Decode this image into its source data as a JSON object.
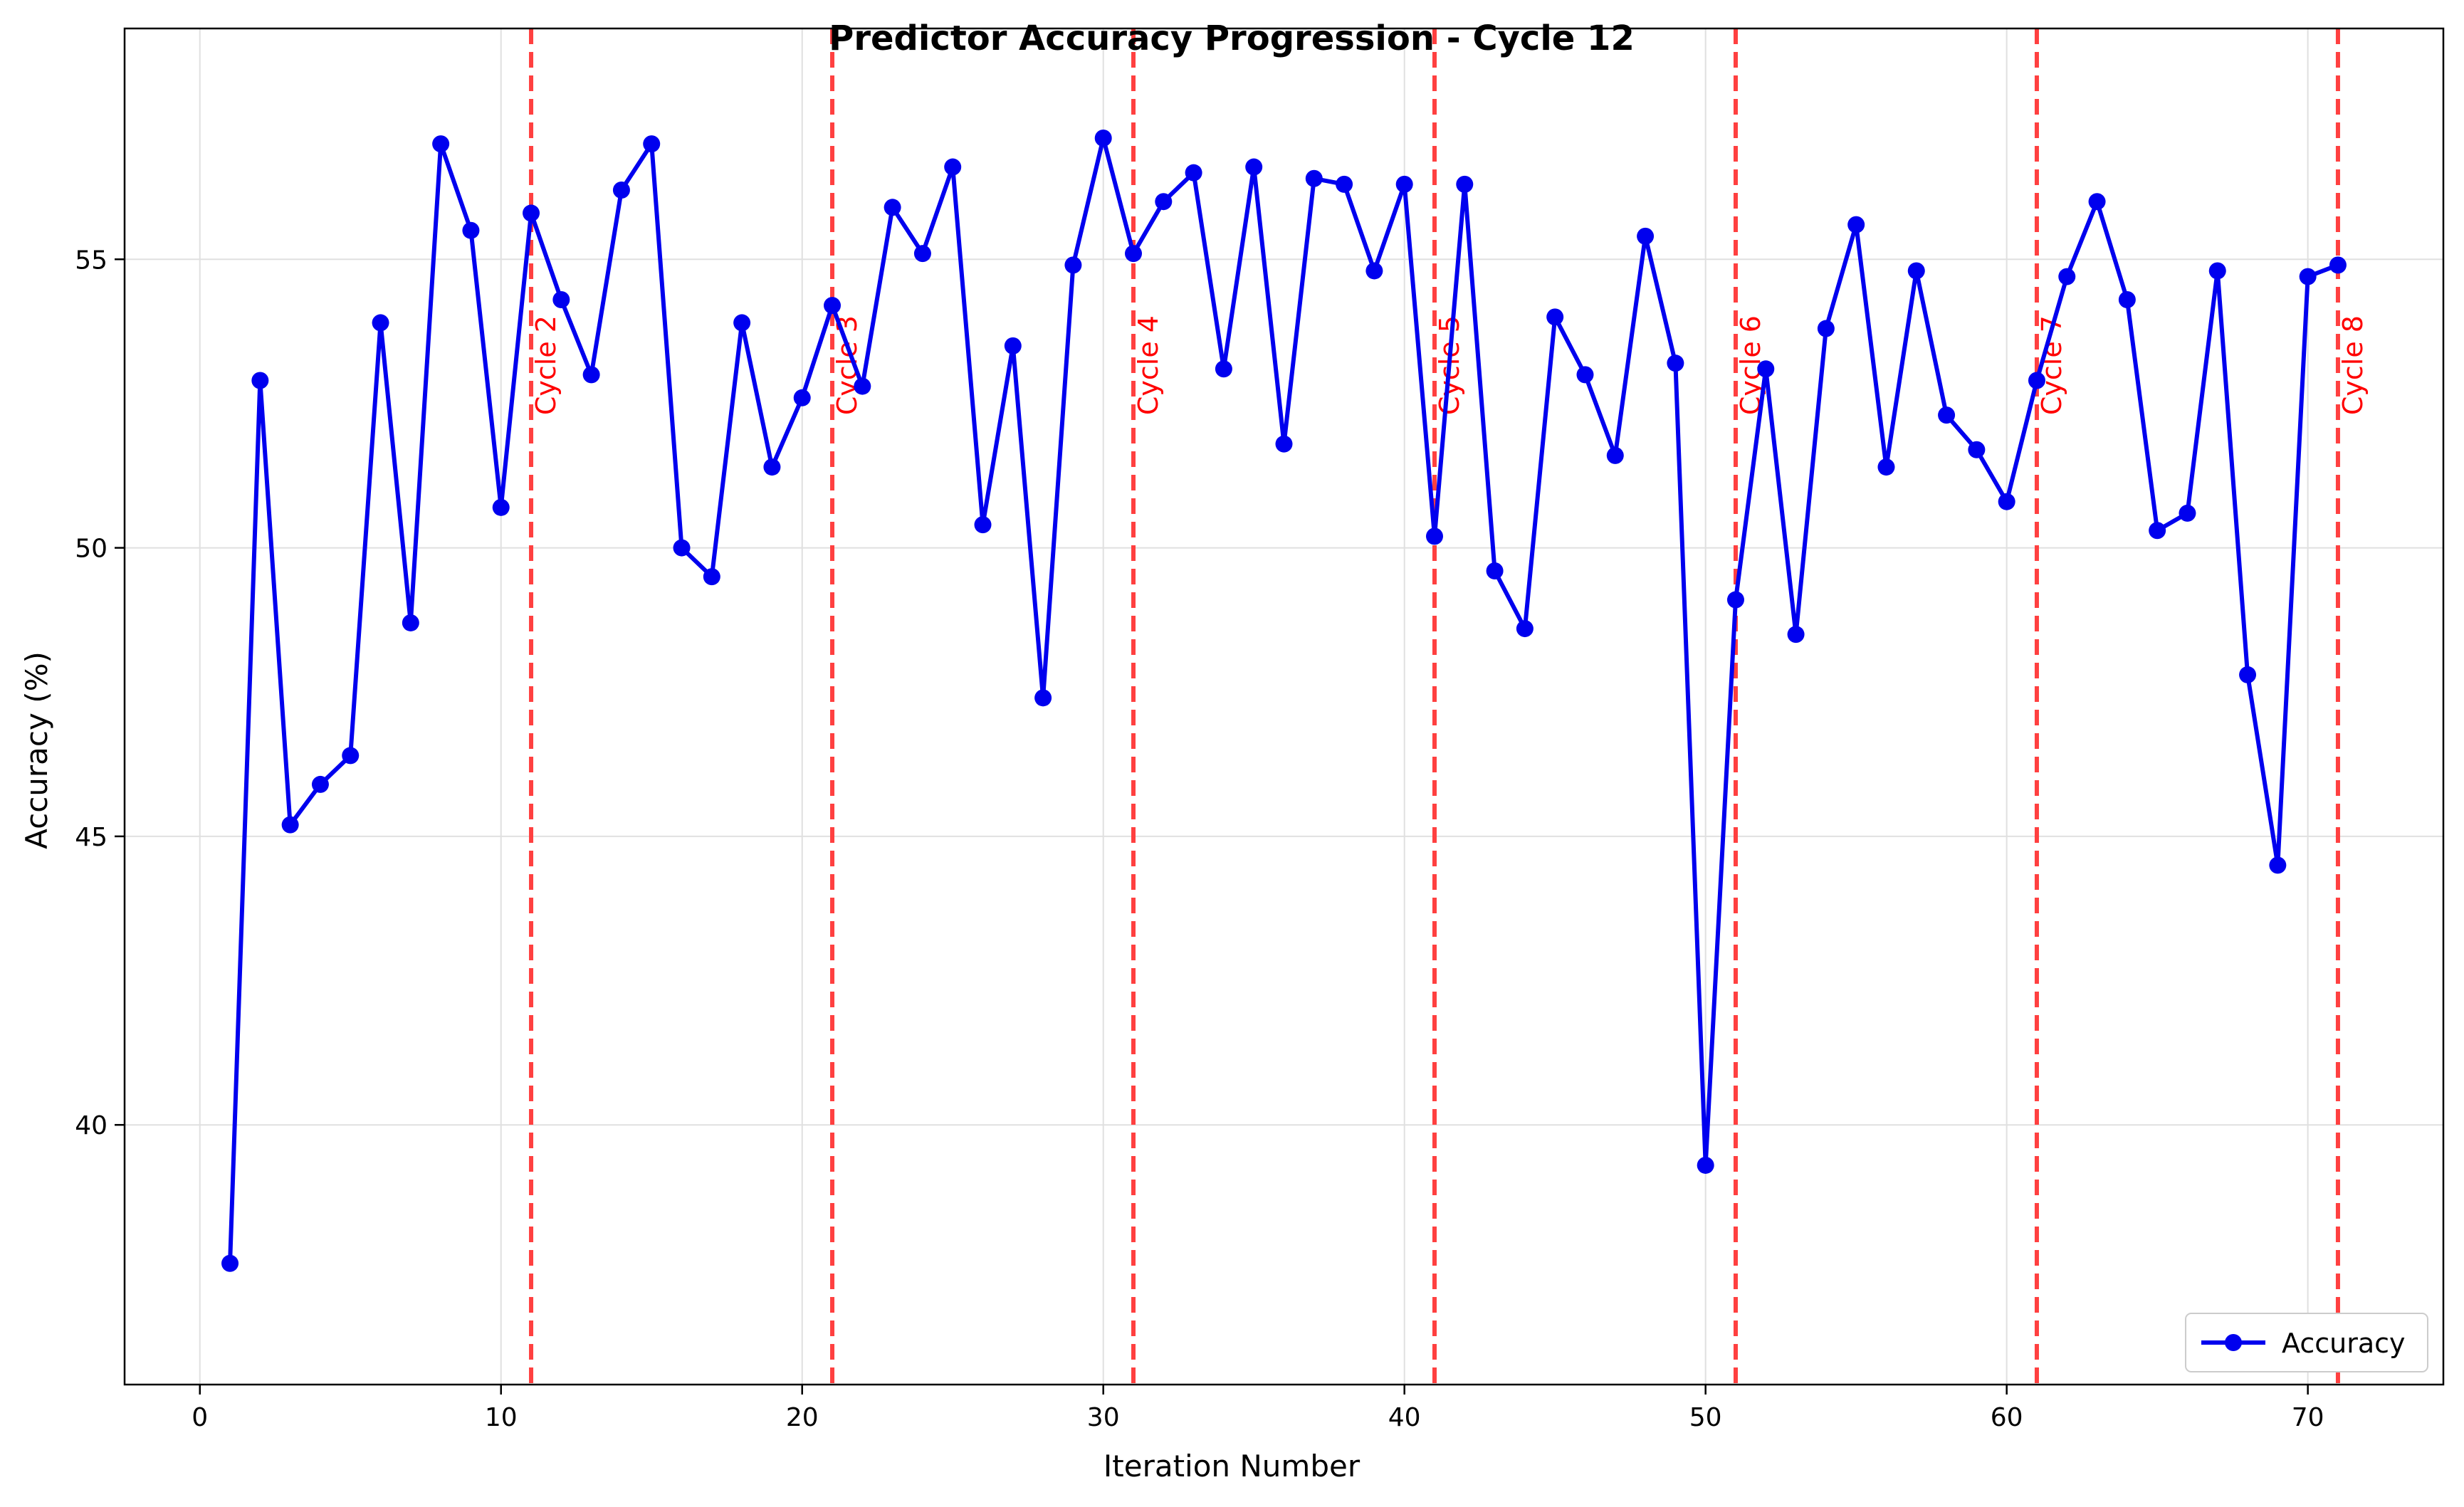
{
  "chart_data": {
    "type": "line",
    "title": "Predictor Accuracy Progression - Cycle 12",
    "xlabel": "Iteration Number",
    "ylabel": "Accuracy (%)",
    "xlim": [
      -2.5,
      74.5
    ],
    "ylim": [
      35.5,
      59.0
    ],
    "xticks": [
      0,
      10,
      20,
      30,
      40,
      50,
      60,
      70
    ],
    "yticks": [
      40,
      45,
      50,
      55
    ],
    "grid": true,
    "legend": {
      "location": "lower-right",
      "entries": [
        "Accuracy"
      ]
    },
    "colors": {
      "series": "#0000ee",
      "cycle_lines": "#ff4040",
      "cycle_text": "#ff0000",
      "grid": "#e0e0e0"
    },
    "series": [
      {
        "name": "Accuracy",
        "x": [
          1,
          2,
          3,
          4,
          5,
          6,
          7,
          8,
          9,
          10,
          11,
          12,
          13,
          14,
          15,
          16,
          17,
          18,
          19,
          20,
          21,
          22,
          23,
          24,
          25,
          26,
          27,
          28,
          29,
          30,
          31,
          32,
          33,
          34,
          35,
          36,
          37,
          38,
          39,
          40,
          41,
          42,
          43,
          44,
          45,
          46,
          47,
          48,
          49,
          50,
          51,
          52,
          53,
          54,
          55,
          56,
          57,
          58,
          59,
          60,
          61,
          62,
          63,
          64,
          65,
          66,
          67,
          68,
          69,
          70,
          71
        ],
        "values": [
          37.6,
          52.9,
          45.2,
          45.9,
          46.4,
          53.9,
          48.7,
          57.0,
          55.5,
          50.7,
          55.8,
          54.3,
          53.0,
          56.2,
          57.0,
          50.0,
          49.5,
          53.9,
          51.4,
          52.6,
          54.2,
          52.8,
          55.9,
          55.1,
          56.6,
          50.4,
          53.5,
          47.4,
          54.9,
          57.1,
          55.1,
          56.0,
          56.5,
          53.1,
          56.6,
          51.8,
          56.4,
          56.3,
          54.8,
          56.3,
          50.2,
          56.3,
          49.6,
          48.6,
          54.0,
          53.0,
          51.6,
          55.4,
          53.2,
          39.3,
          49.1,
          53.1,
          48.5,
          53.8,
          55.6,
          51.4,
          54.8,
          52.3,
          51.7,
          50.8,
          52.9,
          54.7,
          56.0,
          54.3,
          50.3,
          50.6,
          54.8,
          47.8,
          44.5,
          54.7,
          54.9
        ]
      }
    ],
    "annotations": {
      "cycle_lines_x": [
        11,
        21,
        31,
        41,
        51,
        61,
        71
      ],
      "cycle_labels": [
        "Cycle 2",
        "Cycle 3",
        "Cycle 4",
        "Cycle 5",
        "Cycle 6",
        "Cycle 7",
        "Cycle 8"
      ],
      "label_y": 52.3
    }
  }
}
